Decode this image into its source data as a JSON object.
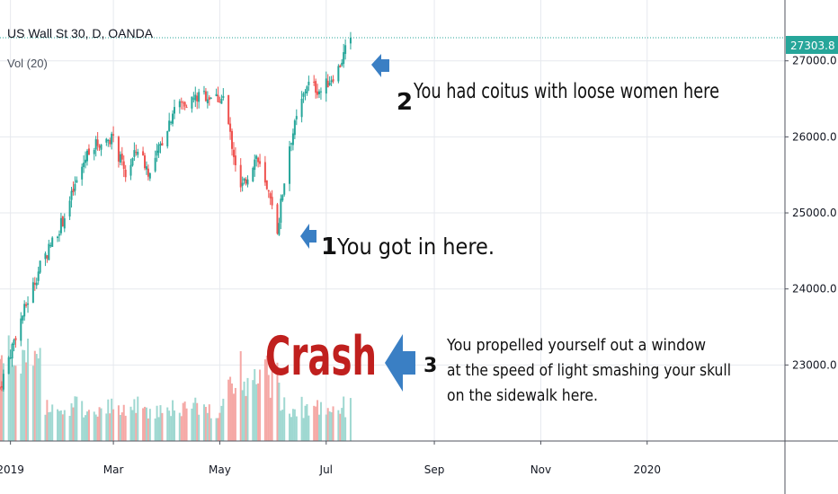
{
  "header": {
    "symbol": "US Wall St 30, D, OANDA",
    "volume_indicator": "Vol (20)"
  },
  "colors": {
    "up": "#26a69a",
    "down": "#ef5350",
    "vol_up": "#9fd8d1",
    "vol_down": "#f5a8a5",
    "price_line": "#26a69a",
    "grid": "#e6e9ee",
    "arrow": "#3a7fc4",
    "crash_text": "#c0201e"
  },
  "chart_data": {
    "type": "candlestick",
    "symbol": "US Wall St 30",
    "interval": "D",
    "ylim": [
      22000,
      27800
    ],
    "y_ticks": [
      23000,
      24000,
      25000,
      26000,
      27000
    ],
    "y_tick_labels": [
      "23000.0",
      "24000.0",
      "25000.0",
      "26000.0",
      "27000.0"
    ],
    "last_price": 27303.8,
    "last_price_label": "27303.8",
    "x_ticks": [
      {
        "label": "2019",
        "date": "2019-01-01"
      },
      {
        "label": "Mar",
        "date": "2019-03-01"
      },
      {
        "label": "May",
        "date": "2019-05-01"
      },
      {
        "label": "Jul",
        "date": "2019-07-01"
      },
      {
        "label": "Sep",
        "date": "2019-09-01"
      },
      {
        "label": "Nov",
        "date": "2019-11-01"
      },
      {
        "label": "2020",
        "date": "2020-01-01"
      }
    ],
    "xlim": [
      "2018-12-26",
      "2020-03-20"
    ],
    "price_keypoints": [
      {
        "date": "2018-12-26",
        "close": 22700
      },
      {
        "date": "2019-01-04",
        "close": 23400
      },
      {
        "date": "2019-01-18",
        "close": 24300
      },
      {
        "date": "2019-01-31",
        "close": 24900
      },
      {
        "date": "2019-02-15",
        "close": 25850
      },
      {
        "date": "2019-02-28",
        "close": 26000
      },
      {
        "date": "2019-03-08",
        "close": 25500
      },
      {
        "date": "2019-03-15",
        "close": 25850
      },
      {
        "date": "2019-03-22",
        "close": 25500
      },
      {
        "date": "2019-04-05",
        "close": 26400
      },
      {
        "date": "2019-04-22",
        "close": 26550
      },
      {
        "date": "2019-05-03",
        "close": 26500
      },
      {
        "date": "2019-05-13",
        "close": 25300
      },
      {
        "date": "2019-05-22",
        "close": 25750
      },
      {
        "date": "2019-06-03",
        "close": 24800
      },
      {
        "date": "2019-06-10",
        "close": 25900
      },
      {
        "date": "2019-06-20",
        "close": 26700
      },
      {
        "date": "2019-06-28",
        "close": 26600
      },
      {
        "date": "2019-07-08",
        "close": 26900
      },
      {
        "date": "2019-07-15",
        "close": 27303.8
      }
    ],
    "annotations": [
      {
        "number": "1",
        "text": "You got in here."
      },
      {
        "number": "2",
        "text": "You had coitus with loose women here"
      },
      {
        "number": "3",
        "title": "Crash",
        "lines": [
          "You propelled yourself out a window",
          "at the speed of light smashing your skull",
          "on the sidewalk here."
        ]
      }
    ]
  }
}
